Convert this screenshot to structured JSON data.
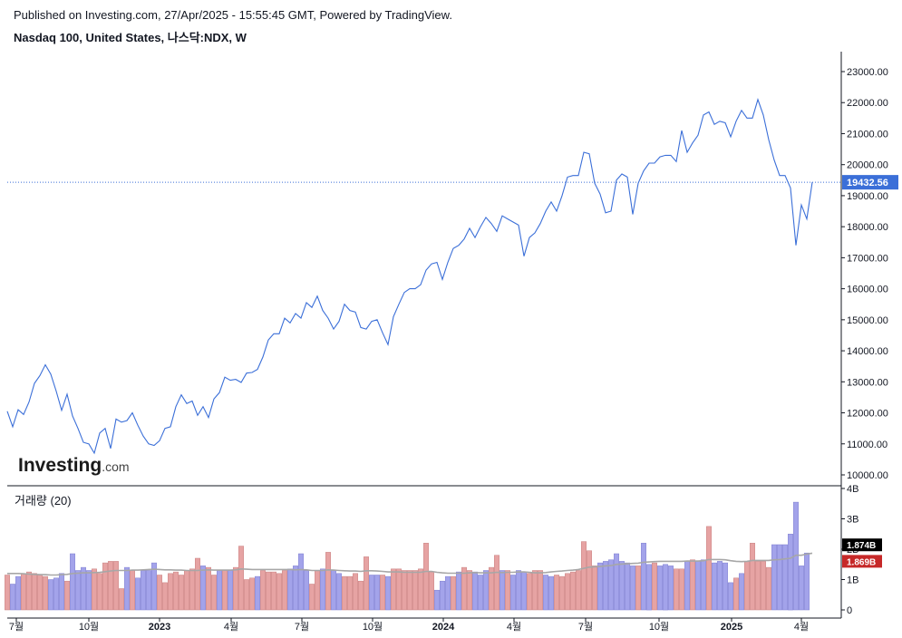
{
  "header": {
    "published": "Published on Investing.com, 27/Apr/2025 - 15:55:45 GMT, Powered by TradingView.",
    "symbol": "Nasdaq 100, United States, 나스닥:NDX, W"
  },
  "logo": {
    "main": "Investing",
    "suffix": ".com"
  },
  "colors": {
    "line": "#3b6fd8",
    "up": "#a3a3ea",
    "down": "#e6a3a3",
    "ma": "#a7a7a7",
    "lastPrice": "#3b6fd8",
    "volUpLabel": "#000000",
    "volDownLabel": "#c62828"
  },
  "chart_data": [
    {
      "type": "line",
      "title": "Nasdaq 100, United States, 나스닥:NDX, W",
      "ylim": [
        9700,
        23900
      ],
      "yticks": [
        "10000.00",
        "11000.00",
        "12000.00",
        "13000.00",
        "14000.00",
        "15000.00",
        "16000.00",
        "17000.00",
        "18000.00",
        "19000.00",
        "20000.00",
        "21000.00",
        "22000.00",
        "23000.00"
      ],
      "last_price_label": "19432.56",
      "last_price": 19432.56,
      "xtick_labels": [
        "7월",
        "10월",
        "2023",
        "4월",
        "7월",
        "10월",
        "2024",
        "4월",
        "7월",
        "10월",
        "2025",
        "4월"
      ],
      "values": [
        12050,
        11550,
        12100,
        11950,
        12350,
        12950,
        13200,
        13550,
        13250,
        12700,
        12080,
        12600,
        11900,
        11500,
        11050,
        11000,
        10700,
        11350,
        11500,
        10850,
        11800,
        11700,
        11750,
        12000,
        11600,
        11250,
        11000,
        10950,
        11100,
        11500,
        11550,
        12200,
        12580,
        12300,
        12380,
        11920,
        12200,
        11850,
        12450,
        12650,
        13150,
        13050,
        13080,
        12980,
        13280,
        13300,
        13400,
        13800,
        14350,
        14550,
        14550,
        15050,
        14900,
        15200,
        15050,
        15550,
        15400,
        15760,
        15300,
        15050,
        14700,
        14950,
        15500,
        15300,
        15250,
        14750,
        14700,
        14950,
        15000,
        14580,
        14200,
        15100,
        15500,
        15880,
        16000,
        16000,
        16130,
        16600,
        16800,
        16850,
        16300,
        16850,
        17300,
        17400,
        17600,
        17950,
        17650,
        18000,
        18300,
        18100,
        17850,
        18350,
        18250,
        18150,
        18050,
        17050,
        17650,
        17800,
        18100,
        18500,
        18800,
        18500,
        19000,
        19600,
        19650,
        19650,
        20400,
        20350,
        19400,
        19050,
        18450,
        18500,
        19500,
        19700,
        19600,
        18400,
        19400,
        19800,
        20050,
        20050,
        20250,
        20300,
        20300,
        20100,
        21100,
        20400,
        20700,
        20950,
        21600,
        21700,
        21300,
        21400,
        21350,
        20900,
        21400,
        21750,
        21500,
        21500,
        22100,
        21600,
        20800,
        20150,
        19650,
        19650,
        19250,
        17400,
        18700,
        18250,
        19432.56
      ]
    },
    {
      "type": "bar",
      "title": "거래량 (20)",
      "ylim": [
        -0.3,
        4
      ],
      "ytick_labels": [
        "0",
        "1B",
        "2B",
        "3B",
        "4B"
      ],
      "last_volume_label": "1.874B",
      "last_ma_label": "1.869B",
      "ma_period": 20,
      "values": [
        1.15,
        0.85,
        1.1,
        1.2,
        1.25,
        1.2,
        1.15,
        1.1,
        1.0,
        1.05,
        1.2,
        0.95,
        1.85,
        1.3,
        1.4,
        1.3,
        1.35,
        1.2,
        1.55,
        1.6,
        1.6,
        0.7,
        1.4,
        1.3,
        1.05,
        1.3,
        1.3,
        1.55,
        1.15,
        0.9,
        1.2,
        1.25,
        1.15,
        1.3,
        1.35,
        1.7,
        1.45,
        1.4,
        1.15,
        1.3,
        1.3,
        1.3,
        1.4,
        2.1,
        1.0,
        1.05,
        1.1,
        1.3,
        1.25,
        1.25,
        1.2,
        1.3,
        1.35,
        1.45,
        1.85,
        1.3,
        0.85,
        1.3,
        1.35,
        1.9,
        1.3,
        1.2,
        1.1,
        1.1,
        1.2,
        0.95,
        1.75,
        1.15,
        1.15,
        1.15,
        1.1,
        1.35,
        1.35,
        1.3,
        1.3,
        1.3,
        1.35,
        2.2,
        1.25,
        0.65,
        0.95,
        1.1,
        1.1,
        1.25,
        1.4,
        1.3,
        1.25,
        1.15,
        1.3,
        1.4,
        1.8,
        1.3,
        1.3,
        1.15,
        1.3,
        1.25,
        1.2,
        1.3,
        1.3,
        1.15,
        1.1,
        1.15,
        1.1,
        1.2,
        1.25,
        1.3,
        2.25,
        1.95,
        1.45,
        1.55,
        1.6,
        1.65,
        1.85,
        1.6,
        1.55,
        1.45,
        1.45,
        2.2,
        1.5,
        1.55,
        1.45,
        1.5,
        1.45,
        1.35,
        1.35,
        1.6,
        1.65,
        1.6,
        1.65,
        2.75,
        1.55,
        1.6,
        1.55,
        0.9,
        1.05,
        1.2,
        1.6,
        2.2,
        1.6,
        1.6,
        1.4,
        2.15,
        2.15,
        2.15,
        2.5,
        3.55,
        1.45,
        1.874
      ],
      "directions": [
        -1,
        1,
        1,
        -1,
        -1,
        -1,
        -1,
        -1,
        1,
        1,
        1,
        -1,
        1,
        1,
        1,
        1,
        -1,
        -1,
        -1,
        -1,
        -1,
        -1,
        1,
        -1,
        1,
        1,
        1,
        1,
        -1,
        -1,
        -1,
        -1,
        -1,
        -1,
        -1,
        -1,
        1,
        -1,
        -1,
        1,
        -1,
        1,
        -1,
        -1,
        -1,
        -1,
        1,
        -1,
        -1,
        -1,
        -1,
        -1,
        1,
        1,
        1,
        1,
        -1,
        -1,
        1,
        -1,
        1,
        1,
        -1,
        -1,
        -1,
        -1,
        -1,
        1,
        1,
        -1,
        1,
        -1,
        -1,
        -1,
        -1,
        -1,
        -1,
        -1,
        -1,
        1,
        1,
        1,
        -1,
        1,
        -1,
        -1,
        1,
        1,
        1,
        -1,
        -1,
        1,
        -1,
        1,
        1,
        1,
        -1,
        -1,
        -1,
        1,
        1,
        -1,
        -1,
        -1,
        -1,
        -1,
        -1,
        -1,
        -1,
        1,
        1,
        1,
        1,
        1,
        1,
        1,
        -1,
        1,
        1,
        -1,
        1,
        1,
        1,
        -1,
        -1,
        1,
        -1,
        1,
        1,
        -1,
        1,
        1,
        1,
        1,
        -1,
        1,
        -1,
        -1,
        -1,
        -1,
        -1,
        1,
        1,
        1,
        1,
        1,
        1,
        1,
        -1,
        1,
        1,
        1,
        -1
      ],
      "ma": [
        1.2,
        1.2,
        1.2,
        1.19,
        1.18,
        1.17,
        1.16,
        1.16,
        1.15,
        1.15,
        1.16,
        1.17,
        1.2,
        1.21,
        1.22,
        1.22,
        1.23,
        1.24,
        1.26,
        1.28,
        1.3,
        1.3,
        1.3,
        1.31,
        1.31,
        1.32,
        1.33,
        1.34,
        1.33,
        1.32,
        1.32,
        1.31,
        1.31,
        1.3,
        1.3,
        1.3,
        1.31,
        1.32,
        1.31,
        1.31,
        1.31,
        1.31,
        1.32,
        1.35,
        1.34,
        1.33,
        1.33,
        1.33,
        1.33,
        1.33,
        1.33,
        1.33,
        1.33,
        1.32,
        1.33,
        1.32,
        1.3,
        1.3,
        1.3,
        1.32,
        1.31,
        1.3,
        1.29,
        1.28,
        1.28,
        1.27,
        1.29,
        1.29,
        1.28,
        1.27,
        1.25,
        1.25,
        1.25,
        1.24,
        1.24,
        1.24,
        1.24,
        1.27,
        1.27,
        1.24,
        1.22,
        1.21,
        1.21,
        1.21,
        1.21,
        1.22,
        1.23,
        1.22,
        1.22,
        1.22,
        1.24,
        1.23,
        1.24,
        1.24,
        1.25,
        1.25,
        1.24,
        1.22,
        1.22,
        1.23,
        1.25,
        1.27,
        1.28,
        1.3,
        1.31,
        1.33,
        1.37,
        1.41,
        1.42,
        1.43,
        1.45,
        1.46,
        1.5,
        1.51,
        1.52,
        1.53,
        1.54,
        1.57,
        1.58,
        1.59,
        1.6,
        1.6,
        1.6,
        1.6,
        1.6,
        1.61,
        1.61,
        1.61,
        1.62,
        1.66,
        1.66,
        1.66,
        1.65,
        1.62,
        1.6,
        1.59,
        1.6,
        1.63,
        1.63,
        1.63,
        1.63,
        1.65,
        1.66,
        1.68,
        1.7,
        1.8,
        1.8,
        1.84,
        1.869
      ]
    }
  ]
}
